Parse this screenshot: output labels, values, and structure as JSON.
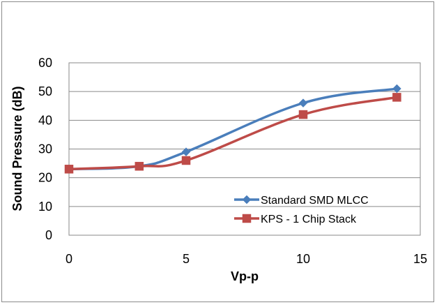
{
  "chart_data": {
    "type": "scatter",
    "xlabel": "Vp-p",
    "ylabel": "Sound Pressure (dB)",
    "xlim": [
      0,
      15
    ],
    "ylim": [
      0,
      60
    ],
    "x_ticks": [
      "0",
      "5",
      "10",
      "15"
    ],
    "y_ticks": [
      "0",
      "10",
      "20",
      "30",
      "40",
      "50",
      "60"
    ],
    "grid": "horizontal",
    "legend_position": "bottom-right",
    "series": [
      {
        "name": "Standard SMD MLCC",
        "color": "#4a7ebb",
        "marker": "diamond",
        "line": "smooth",
        "x": [
          0,
          3,
          5,
          10,
          14
        ],
        "y": [
          23,
          24,
          29,
          46,
          51
        ]
      },
      {
        "name": "KPS - 1 Chip Stack",
        "color": "#be4b48",
        "marker": "square",
        "line": "smooth",
        "x": [
          0,
          3,
          5,
          10,
          14
        ],
        "y": [
          23,
          24,
          26,
          42,
          48
        ]
      }
    ]
  }
}
